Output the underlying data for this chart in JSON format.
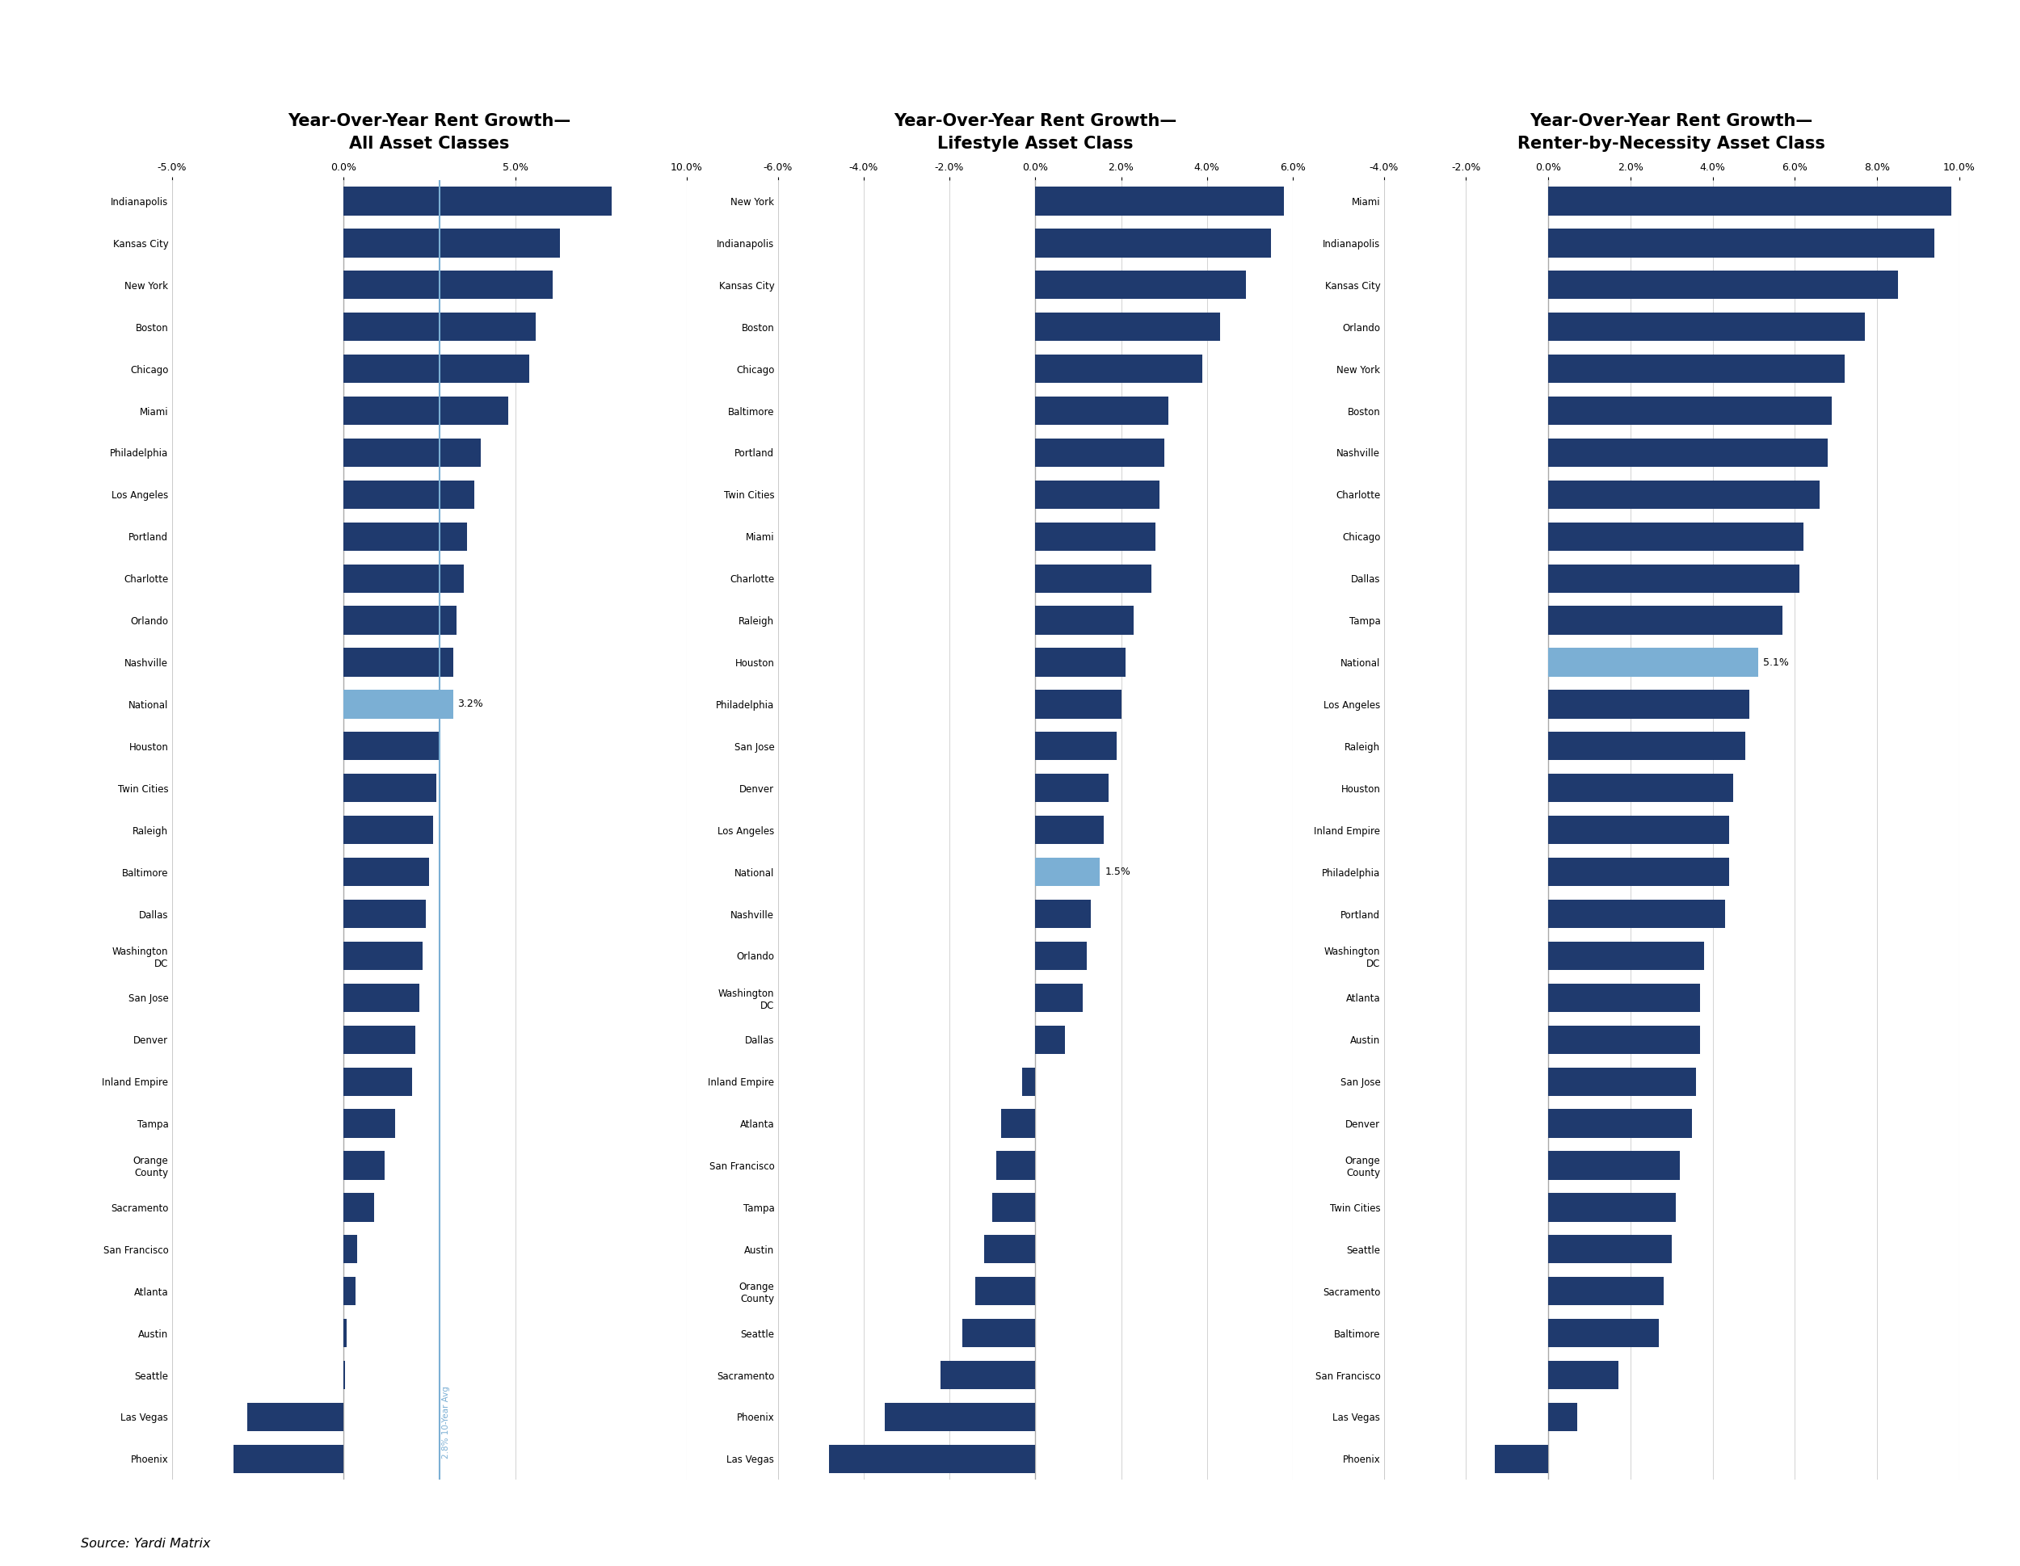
{
  "chart1": {
    "title": "Year-Over-Year Rent Growth—\nAll Asset Classes",
    "categories": [
      "Indianapolis",
      "Kansas City",
      "New York",
      "Boston",
      "Chicago",
      "Miami",
      "Philadelphia",
      "Los Angeles",
      "Portland",
      "Charlotte",
      "Orlando",
      "Nashville",
      "National",
      "Houston",
      "Twin Cities",
      "Raleigh",
      "Baltimore",
      "Dallas",
      "Washington\nDC",
      "San Jose",
      "Denver",
      "Inland Empire",
      "Tampa",
      "Orange\nCounty",
      "Sacramento",
      "San Francisco",
      "Atlanta",
      "Austin",
      "Seattle",
      "Las Vegas",
      "Phoenix"
    ],
    "values": [
      7.8,
      6.3,
      6.1,
      5.6,
      5.4,
      4.8,
      4.0,
      3.8,
      3.6,
      3.5,
      3.3,
      3.2,
      3.2,
      2.8,
      2.7,
      2.6,
      2.5,
      2.4,
      2.3,
      2.2,
      2.1,
      2.0,
      1.5,
      1.2,
      0.9,
      0.4,
      0.35,
      0.1,
      0.05,
      -2.8,
      -3.2
    ],
    "national_label": "3.2%",
    "national_index": 12,
    "xlim": [
      -5.0,
      10.0
    ],
    "xticks": [
      -5.0,
      0.0,
      5.0,
      10.0
    ],
    "xticklabels": [
      "-5.0%",
      "0.0%",
      "5.0%",
      "10.0%"
    ],
    "avg_line": 2.8,
    "avg_label": "2.8% 10-Year Avg"
  },
  "chart2": {
    "title": "Year-Over-Year Rent Growth—\nLifestyle Asset Class",
    "categories": [
      "New York",
      "Indianapolis",
      "Kansas City",
      "Boston",
      "Chicago",
      "Baltimore",
      "Portland",
      "Twin Cities",
      "Miami",
      "Charlotte",
      "Raleigh",
      "Houston",
      "Philadelphia",
      "San Jose",
      "Denver",
      "Los Angeles",
      "National",
      "Nashville",
      "Orlando",
      "Washington\nDC",
      "Dallas",
      "Inland Empire",
      "Atlanta",
      "San Francisco",
      "Tampa",
      "Austin",
      "Orange\nCounty",
      "Seattle",
      "Sacramento",
      "Phoenix",
      "Las Vegas"
    ],
    "values": [
      5.8,
      5.5,
      4.9,
      4.3,
      3.9,
      3.1,
      3.0,
      2.9,
      2.8,
      2.7,
      2.3,
      2.1,
      2.0,
      1.9,
      1.7,
      1.6,
      1.5,
      1.3,
      1.2,
      1.1,
      0.7,
      -0.3,
      -0.8,
      -0.9,
      -1.0,
      -1.2,
      -1.4,
      -1.7,
      -2.2,
      -3.5,
      -4.8
    ],
    "national_label": "1.5%",
    "national_index": 16,
    "xlim": [
      -6.0,
      6.0
    ],
    "xticks": [
      -6.0,
      -4.0,
      -2.0,
      0.0,
      2.0,
      4.0,
      6.0
    ],
    "xticklabels": [
      "-6.0%",
      "-4.0%",
      "-2.0%",
      "0.0%",
      "2.0%",
      "4.0%",
      "6.0%"
    ]
  },
  "chart3": {
    "title": "Year-Over-Year Rent Growth—\nRenter-by-Necessity Asset Class",
    "categories": [
      "Miami",
      "Indianapolis",
      "Kansas City",
      "Orlando",
      "New York",
      "Boston",
      "Nashville",
      "Charlotte",
      "Chicago",
      "Dallas",
      "Tampa",
      "National",
      "Los Angeles",
      "Raleigh",
      "Houston",
      "Inland Empire",
      "Philadelphia",
      "Portland",
      "Washington\nDC",
      "Atlanta",
      "Austin",
      "San Jose",
      "Denver",
      "Orange\nCounty",
      "Twin Cities",
      "Seattle",
      "Sacramento",
      "Baltimore",
      "San Francisco",
      "Las Vegas",
      "Phoenix"
    ],
    "values": [
      9.8,
      9.4,
      8.5,
      7.7,
      7.2,
      6.9,
      6.8,
      6.6,
      6.2,
      6.1,
      5.7,
      5.1,
      4.9,
      4.8,
      4.5,
      4.4,
      4.4,
      4.3,
      3.8,
      3.7,
      3.7,
      3.6,
      3.5,
      3.2,
      3.1,
      3.0,
      2.8,
      2.7,
      1.7,
      0.7,
      -1.3
    ],
    "national_label": "5.1%",
    "national_index": 11,
    "xlim": [
      -4.0,
      10.0
    ],
    "xticks": [
      -4.0,
      -2.0,
      0.0,
      2.0,
      4.0,
      6.0,
      8.0,
      10.0
    ],
    "xticklabels": [
      "-4.0%",
      "-2.0%",
      "0.0%",
      "2.0%",
      "4.0%",
      "6.0%",
      "8.0%",
      "10.0%"
    ]
  },
  "bar_color": "#1f3a6e",
  "national_color": "#7bafd4",
  "background_color": "#ffffff",
  "source": "Source: Yardi Matrix"
}
